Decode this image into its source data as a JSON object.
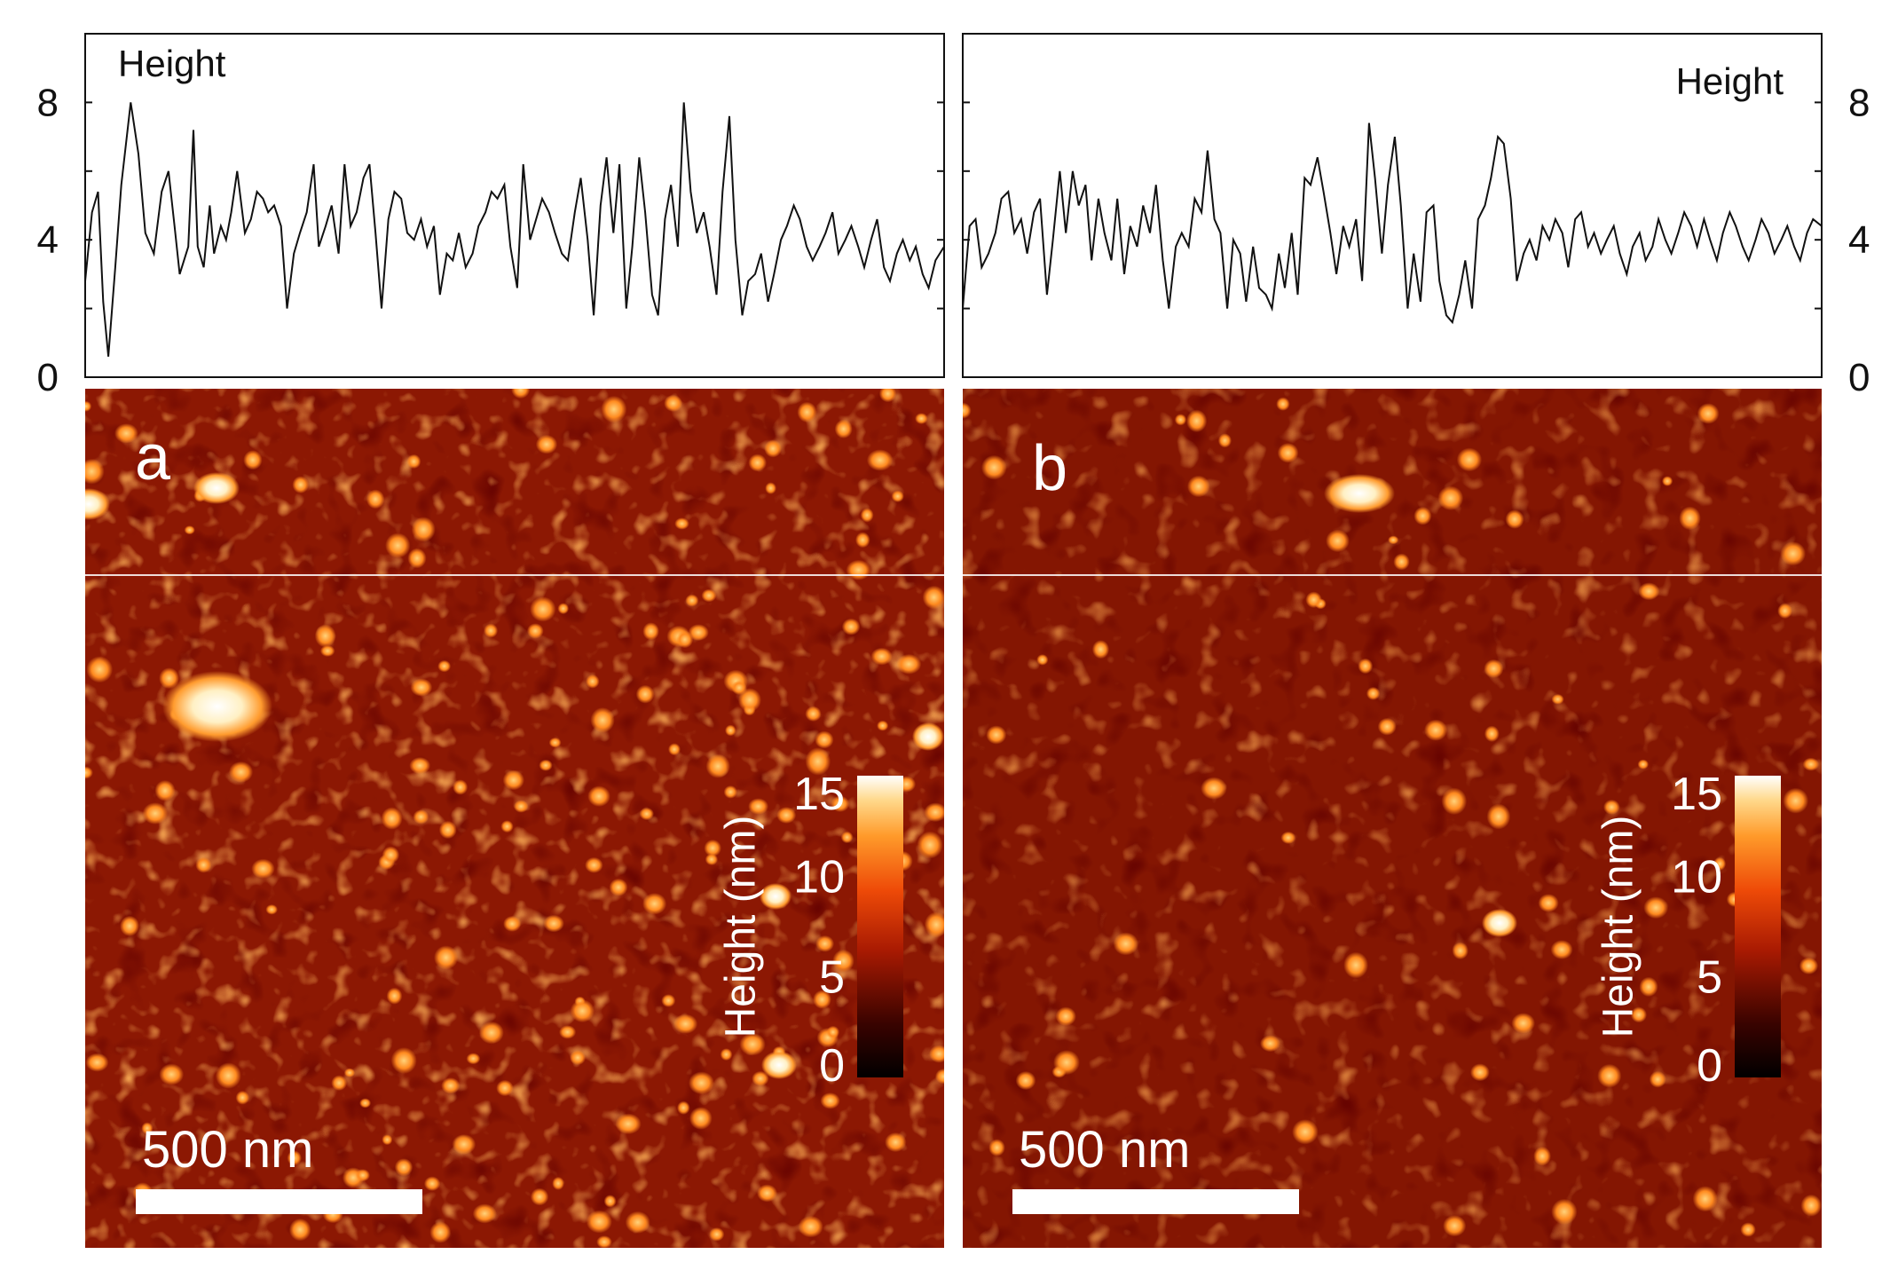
{
  "chart_data": [
    {
      "type": "line",
      "panel": "a",
      "legend_label": "Height",
      "legend_position": "top-left",
      "ylabel": "",
      "ylim": [
        0,
        10
      ],
      "yticks": [
        0,
        4,
        8
      ],
      "ytick_side": "left",
      "xlim": [
        0,
        1
      ],
      "grid": false,
      "series": [
        {
          "name": "Height",
          "x": [
            0.0,
            0.008,
            0.015,
            0.021,
            0.027,
            0.035,
            0.042,
            0.053,
            0.062,
            0.07,
            0.08,
            0.089,
            0.097,
            0.104,
            0.11,
            0.12,
            0.126,
            0.131,
            0.138,
            0.145,
            0.15,
            0.158,
            0.164,
            0.17,
            0.177,
            0.186,
            0.193,
            0.2,
            0.207,
            0.213,
            0.22,
            0.228,
            0.235,
            0.243,
            0.25,
            0.258,
            0.266,
            0.272,
            0.28,
            0.287,
            0.295,
            0.302,
            0.309,
            0.316,
            0.324,
            0.331,
            0.338,
            0.345,
            0.353,
            0.36,
            0.368,
            0.375,
            0.383,
            0.391,
            0.398,
            0.406,
            0.413,
            0.421,
            0.428,
            0.435,
            0.443,
            0.451,
            0.458,
            0.466,
            0.473,
            0.48,
            0.488,
            0.495,
            0.503,
            0.51,
            0.518,
            0.525,
            0.532,
            0.54,
            0.547,
            0.555,
            0.562,
            0.57,
            0.577,
            0.585,
            0.592,
            0.6,
            0.607,
            0.615,
            0.622,
            0.63,
            0.637,
            0.645,
            0.652,
            0.66,
            0.667,
            0.675,
            0.682,
            0.69,
            0.697,
            0.705,
            0.712,
            0.72,
            0.727,
            0.735,
            0.742,
            0.75,
            0.757,
            0.765,
            0.772,
            0.78,
            0.787,
            0.795,
            0.802,
            0.81,
            0.817,
            0.825,
            0.832,
            0.84,
            0.847,
            0.855,
            0.862,
            0.87,
            0.877,
            0.885,
            0.892,
            0.9,
            0.907,
            0.915,
            0.922,
            0.93,
            0.937,
            0.945,
            0.952,
            0.96,
            0.967,
            0.975,
            0.982,
            0.99,
            1.0
          ],
          "values": [
            2.8,
            4.8,
            5.4,
            2.2,
            0.6,
            3.2,
            5.6,
            8.0,
            6.5,
            4.2,
            3.6,
            5.4,
            6.0,
            4.4,
            3.0,
            3.8,
            7.2,
            3.8,
            3.2,
            5.0,
            3.6,
            4.4,
            4.0,
            4.8,
            6.0,
            4.2,
            4.6,
            5.4,
            5.2,
            4.8,
            5.0,
            4.4,
            2.0,
            3.6,
            4.2,
            4.8,
            6.2,
            3.8,
            4.4,
            5.0,
            3.6,
            6.2,
            4.4,
            4.8,
            5.8,
            6.2,
            4.2,
            2.0,
            4.6,
            5.4,
            5.2,
            4.2,
            4.0,
            4.6,
            3.8,
            4.4,
            2.4,
            3.6,
            3.4,
            4.2,
            3.2,
            3.6,
            4.4,
            4.8,
            5.4,
            5.2,
            5.6,
            3.8,
            2.6,
            6.2,
            4.0,
            4.6,
            5.2,
            4.8,
            4.2,
            3.6,
            3.4,
            4.8,
            5.8,
            4.0,
            1.8,
            5.0,
            6.4,
            4.2,
            6.2,
            2.0,
            3.8,
            6.4,
            4.8,
            2.4,
            1.8,
            4.6,
            5.6,
            3.8,
            8.0,
            5.4,
            4.2,
            4.8,
            3.8,
            2.4,
            5.4,
            7.6,
            4.0,
            1.8,
            2.8,
            3.0,
            3.6,
            2.2,
            3.0,
            4.0,
            4.4,
            5.0,
            4.6,
            3.8,
            3.4,
            3.8,
            4.2,
            4.8,
            3.6,
            4.0,
            4.4,
            3.8,
            3.2,
            4.0,
            4.6,
            3.2,
            2.8,
            3.6,
            4.0,
            3.4,
            3.8,
            3.0,
            2.6,
            3.4,
            3.8
          ]
        }
      ],
      "image_label": "a",
      "scale_bar_label": "500 nm",
      "colorbar": {
        "label": "Height (nm)",
        "ticks": [
          0,
          5,
          10,
          15
        ],
        "range": [
          0,
          15
        ]
      }
    },
    {
      "type": "line",
      "panel": "b",
      "legend_label": "Height",
      "legend_position": "top-right",
      "ylabel": "",
      "ylim": [
        0,
        10
      ],
      "yticks": [
        0,
        4,
        8
      ],
      "ytick_side": "right",
      "xlim": [
        0,
        1
      ],
      "grid": false,
      "series": [
        {
          "name": "Height",
          "x": [
            0.0,
            0.008,
            0.015,
            0.022,
            0.03,
            0.038,
            0.045,
            0.053,
            0.06,
            0.068,
            0.075,
            0.083,
            0.09,
            0.098,
            0.105,
            0.113,
            0.12,
            0.128,
            0.135,
            0.143,
            0.15,
            0.158,
            0.165,
            0.173,
            0.18,
            0.188,
            0.195,
            0.203,
            0.21,
            0.218,
            0.225,
            0.233,
            0.24,
            0.248,
            0.255,
            0.263,
            0.27,
            0.278,
            0.285,
            0.293,
            0.3,
            0.308,
            0.315,
            0.323,
            0.33,
            0.338,
            0.345,
            0.353,
            0.36,
            0.368,
            0.375,
            0.383,
            0.39,
            0.398,
            0.405,
            0.413,
            0.42,
            0.428,
            0.435,
            0.443,
            0.45,
            0.458,
            0.465,
            0.473,
            0.48,
            0.488,
            0.495,
            0.503,
            0.51,
            0.518,
            0.525,
            0.533,
            0.54,
            0.548,
            0.555,
            0.563,
            0.57,
            0.578,
            0.585,
            0.593,
            0.6,
            0.608,
            0.615,
            0.623,
            0.63,
            0.638,
            0.645,
            0.653,
            0.66,
            0.668,
            0.675,
            0.683,
            0.69,
            0.698,
            0.705,
            0.713,
            0.72,
            0.728,
            0.735,
            0.743,
            0.75,
            0.758,
            0.765,
            0.773,
            0.78,
            0.788,
            0.795,
            0.803,
            0.81,
            0.818,
            0.825,
            0.833,
            0.84,
            0.848,
            0.855,
            0.863,
            0.87,
            0.878,
            0.885,
            0.893,
            0.9,
            0.908,
            0.915,
            0.923,
            0.93,
            0.938,
            0.945,
            0.953,
            0.96,
            0.968,
            0.975,
            0.983,
            0.99,
            1.0
          ],
          "values": [
            2.0,
            4.4,
            4.6,
            3.2,
            3.6,
            4.2,
            5.2,
            5.4,
            4.2,
            4.6,
            3.6,
            4.8,
            5.2,
            2.4,
            4.0,
            6.0,
            4.2,
            6.0,
            5.0,
            5.6,
            3.4,
            5.2,
            4.2,
            3.4,
            5.2,
            3.0,
            4.4,
            3.8,
            5.0,
            4.2,
            5.6,
            3.4,
            2.0,
            3.8,
            4.2,
            3.8,
            5.2,
            4.8,
            6.6,
            4.6,
            4.2,
            2.0,
            4.0,
            3.6,
            2.2,
            3.8,
            2.6,
            2.4,
            2.0,
            3.6,
            2.6,
            4.2,
            2.4,
            5.8,
            5.6,
            6.4,
            5.4,
            4.2,
            3.0,
            4.4,
            3.8,
            4.6,
            2.8,
            7.4,
            5.8,
            3.6,
            5.6,
            7.0,
            5.0,
            2.0,
            3.6,
            2.2,
            4.8,
            5.0,
            2.8,
            1.8,
            1.6,
            2.4,
            3.4,
            2.0,
            4.6,
            5.0,
            5.8,
            7.0,
            6.8,
            5.2,
            2.8,
            3.6,
            4.0,
            3.4,
            4.4,
            4.0,
            4.6,
            4.2,
            3.2,
            4.6,
            4.8,
            3.8,
            4.2,
            3.6,
            4.0,
            4.4,
            3.6,
            3.0,
            3.8,
            4.2,
            3.4,
            3.8,
            4.6,
            4.0,
            3.6,
            4.2,
            4.8,
            4.4,
            3.8,
            4.6,
            4.0,
            3.4,
            4.2,
            4.8,
            4.4,
            3.8,
            3.4,
            4.0,
            4.6,
            4.2,
            3.6,
            4.0,
            4.4,
            3.8,
            3.4,
            4.2,
            4.6,
            4.4
          ]
        }
      ],
      "image_label": "b",
      "scale_bar_label": "500 nm",
      "colorbar": {
        "label": "Height (nm)",
        "ticks": [
          0,
          5,
          10,
          15
        ],
        "range": [
          0,
          15
        ]
      }
    }
  ],
  "colors": {
    "surface_dark": "#5a0600",
    "surface_mid": "#8e1a03",
    "grain": "#d6490c",
    "grain_hot": "#ff9a2a",
    "particle": "#fff1c8",
    "line": "#111111"
  }
}
